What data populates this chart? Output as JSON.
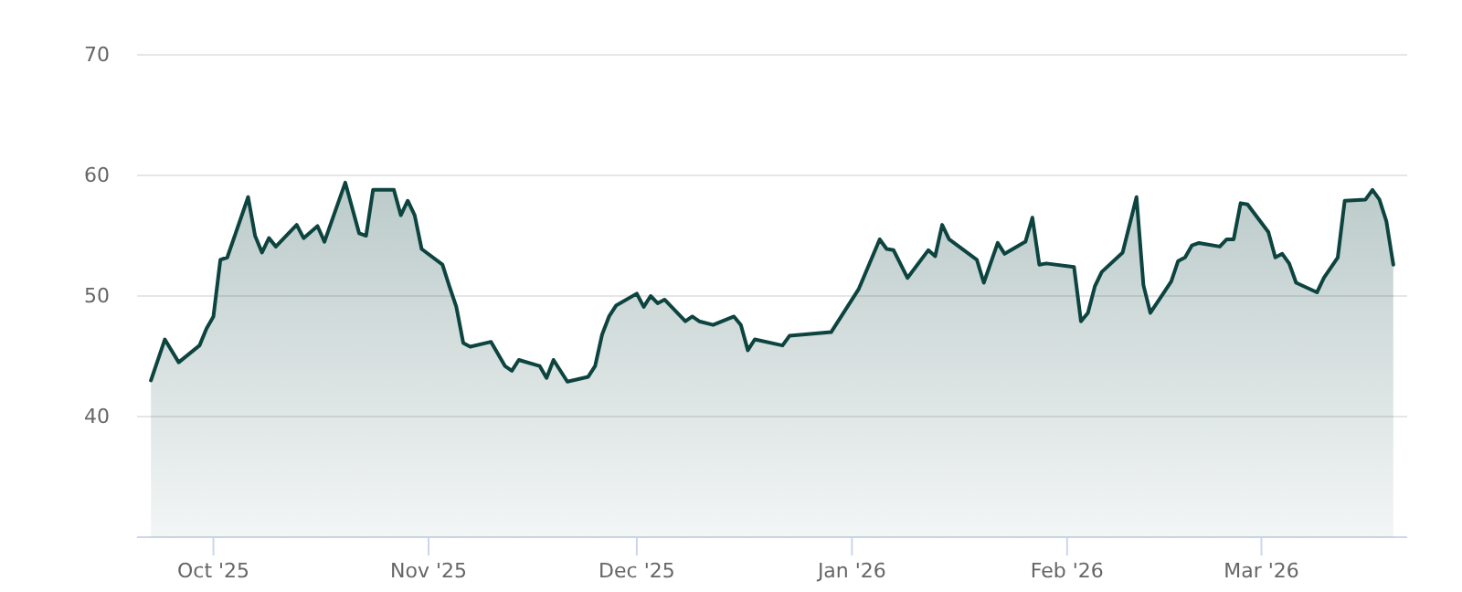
{
  "chart_data": {
    "type": "area",
    "xlim": [
      "2025-09-20",
      "2026-03-22"
    ],
    "ylim": [
      30,
      70
    ],
    "yticks": [
      40,
      50,
      60,
      70
    ],
    "xticks": [
      {
        "value": "2025-10-01",
        "label": "Oct '25"
      },
      {
        "value": "2025-11-01",
        "label": "Nov '25"
      },
      {
        "value": "2025-12-01",
        "label": "Dec '25"
      },
      {
        "value": "2026-01-01",
        "label": "Jan '26"
      },
      {
        "value": "2026-02-01",
        "label": "Feb '26"
      },
      {
        "value": "2026-03-01",
        "label": "Mar '26"
      }
    ],
    "grid": "y",
    "marker": "none",
    "line_style": "solid",
    "series": [
      {
        "color": "#0d4440",
        "x": [
          "2025-09-22",
          "2025-09-24",
          "2025-09-26",
          "2025-09-29",
          "2025-09-30",
          "2025-10-01",
          "2025-10-02",
          "2025-10-03",
          "2025-10-06",
          "2025-10-07",
          "2025-10-08",
          "2025-10-09",
          "2025-10-10",
          "2025-10-13",
          "2025-10-14",
          "2025-10-16",
          "2025-10-17",
          "2025-10-20",
          "2025-10-22",
          "2025-10-23",
          "2025-10-24",
          "2025-10-27",
          "2025-10-28",
          "2025-10-29",
          "2025-10-30",
          "2025-10-31",
          "2025-11-03",
          "2025-11-04",
          "2025-11-05",
          "2025-11-06",
          "2025-11-07",
          "2025-11-10",
          "2025-11-12",
          "2025-11-13",
          "2025-11-14",
          "2025-11-17",
          "2025-11-18",
          "2025-11-19",
          "2025-11-21",
          "2025-11-24",
          "2025-11-25",
          "2025-11-26",
          "2025-11-27",
          "2025-11-28",
          "2025-12-01",
          "2025-12-02",
          "2025-12-03",
          "2025-12-04",
          "2025-12-05",
          "2025-12-08",
          "2025-12-09",
          "2025-12-10",
          "2025-12-12",
          "2025-12-15",
          "2025-12-16",
          "2025-12-17",
          "2025-12-18",
          "2025-12-22",
          "2025-12-23",
          "2025-12-29",
          "2026-01-02",
          "2026-01-05",
          "2026-01-06",
          "2026-01-07",
          "2026-01-09",
          "2026-01-12",
          "2026-01-13",
          "2026-01-14",
          "2026-01-15",
          "2026-01-19",
          "2026-01-20",
          "2026-01-22",
          "2026-01-23",
          "2026-01-26",
          "2026-01-27",
          "2026-01-28",
          "2026-01-29",
          "2026-02-02",
          "2026-02-03",
          "2026-02-04",
          "2026-02-05",
          "2026-02-06",
          "2026-02-09",
          "2026-02-11",
          "2026-02-12",
          "2026-02-13",
          "2026-02-16",
          "2026-02-17",
          "2026-02-18",
          "2026-02-19",
          "2026-02-20",
          "2026-02-23",
          "2026-02-24",
          "2026-02-25",
          "2026-02-26",
          "2026-02-27",
          "2026-03-02",
          "2026-03-03",
          "2026-03-04",
          "2026-03-05",
          "2026-03-06",
          "2026-03-09",
          "2026-03-10",
          "2026-03-12",
          "2026-03-13",
          "2026-03-16",
          "2026-03-17",
          "2026-03-18",
          "2026-03-19",
          "2026-03-20"
        ],
        "values": [
          43.0,
          46.4,
          44.5,
          45.9,
          47.3,
          48.3,
          53.0,
          53.2,
          58.2,
          55.0,
          53.6,
          54.8,
          54.1,
          55.9,
          54.8,
          55.8,
          54.5,
          59.4,
          55.2,
          55.0,
          58.8,
          58.8,
          56.7,
          57.9,
          56.7,
          53.9,
          52.6,
          50.8,
          49.1,
          46.1,
          45.8,
          46.2,
          44.2,
          43.8,
          44.7,
          44.2,
          43.2,
          44.7,
          42.9,
          43.3,
          44.2,
          46.8,
          48.3,
          49.2,
          50.2,
          49.1,
          50.0,
          49.4,
          49.7,
          47.9,
          48.3,
          47.9,
          47.6,
          48.3,
          47.6,
          45.5,
          46.4,
          45.9,
          46.7,
          47.0,
          50.6,
          54.7,
          53.9,
          53.8,
          51.5,
          53.8,
          53.3,
          55.9,
          54.7,
          53.0,
          51.1,
          54.4,
          53.5,
          54.5,
          56.5,
          52.6,
          52.7,
          52.4,
          47.9,
          48.6,
          50.8,
          52.0,
          53.6,
          58.2,
          50.9,
          48.6,
          51.2,
          52.9,
          53.2,
          54.2,
          54.4,
          54.1,
          54.7,
          54.7,
          57.7,
          57.6,
          55.3,
          53.2,
          53.5,
          52.7,
          51.1,
          50.3,
          51.5,
          53.2,
          57.9,
          58.0,
          58.8,
          58.0,
          56.2,
          52.6
        ]
      }
    ]
  }
}
